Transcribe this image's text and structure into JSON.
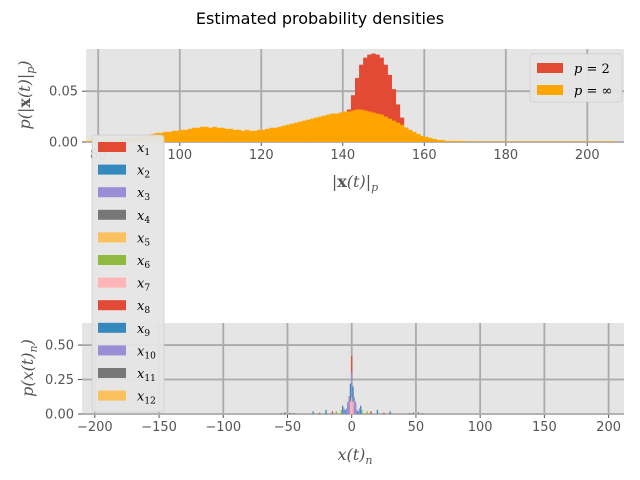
{
  "figure": {
    "title": "Estimated probability densities"
  },
  "chart_data": [
    {
      "type": "bar",
      "style": "histogram",
      "xlabel": "|x(t)|_p",
      "xlabel_parts": {
        "open": "|",
        "bold": "x",
        "mid": "(t)|",
        "sub": "p"
      },
      "ylabel": "p(|x(t)|_p)",
      "ylabel_parts": {
        "main": "p(|",
        "bold": "x",
        "mid": "(t)|",
        "sub": "p",
        "close": ")"
      },
      "xlim": [
        77,
        209
      ],
      "ylim": [
        0,
        0.0915
      ],
      "xticks": [
        {
          "value": 80,
          "label": "80"
        },
        {
          "value": 100,
          "label": "100"
        },
        {
          "value": 120,
          "label": "120"
        },
        {
          "value": 140,
          "label": "140"
        },
        {
          "value": 160,
          "label": "160"
        },
        {
          "value": 180,
          "label": "180"
        },
        {
          "value": 200,
          "label": "200"
        }
      ],
      "yticks": [
        {
          "value": 0,
          "label": "0.00"
        },
        {
          "value": 0.05,
          "label": "0.05"
        }
      ],
      "grid": true,
      "legend_placement": "upper right",
      "bin_width": 1.0,
      "series": [
        {
          "name": "p = 2",
          "label_main": "p",
          "label_eq": " = 2",
          "color": "#e24a33",
          "x_start": 134,
          "x_end": 171,
          "densities": [
            0.001,
            0.002,
            0.004,
            0.007,
            0.01,
            0.015,
            0.022,
            0.032,
            0.046,
            0.063,
            0.076,
            0.083,
            0.086,
            0.087,
            0.086,
            0.083,
            0.076,
            0.066,
            0.052,
            0.037,
            0.024,
            0.014,
            0.008,
            0.005,
            0.004,
            0.003,
            0.002,
            0.002,
            0.001,
            0.001,
            0.001,
            0.001,
            0.001,
            0.0005,
            0.0005,
            0.0005,
            0.0005
          ]
        },
        {
          "name": "p = ∞",
          "label_main": "p",
          "label_eq": " = ∞",
          "color": "#ffa500",
          "x_start": 77,
          "x_end": 207,
          "densities": [
            0.001,
            0.001,
            0.001,
            0.001,
            0.002,
            0.002,
            0.002,
            0.003,
            0.003,
            0.004,
            0.004,
            0.005,
            0.005,
            0.006,
            0.006,
            0.007,
            0.008,
            0.009,
            0.009,
            0.01,
            0.01,
            0.011,
            0.011,
            0.012,
            0.012,
            0.013,
            0.014,
            0.014,
            0.015,
            0.015,
            0.014,
            0.015,
            0.014,
            0.014,
            0.013,
            0.013,
            0.012,
            0.012,
            0.011,
            0.012,
            0.011,
            0.011,
            0.012,
            0.012,
            0.013,
            0.014,
            0.014,
            0.015,
            0.016,
            0.017,
            0.018,
            0.019,
            0.02,
            0.021,
            0.022,
            0.023,
            0.024,
            0.025,
            0.026,
            0.027,
            0.028,
            0.028,
            0.029,
            0.03,
            0.03,
            0.031,
            0.032,
            0.032,
            0.031,
            0.03,
            0.029,
            0.028,
            0.027,
            0.025,
            0.023,
            0.021,
            0.019,
            0.017,
            0.014,
            0.012,
            0.01,
            0.008,
            0.006,
            0.005,
            0.004,
            0.003,
            0.002,
            0.002,
            0.001,
            0.001,
            0.001,
            0.001,
            0.001,
            0.0005,
            0.0005,
            0.0005,
            0.0005,
            0.0005,
            0.0005,
            0.0005,
            0.0005,
            0.0005,
            0.0005,
            0.0005,
            0.0005,
            0.0005,
            0.0005,
            0.0005,
            0.0005,
            0.0005,
            0.0005,
            0.0005,
            0.0005,
            0.0005,
            0.0005,
            0.0005,
            0.0005,
            0.0005,
            0.0005,
            0.0005,
            0.0005,
            0.0005,
            0.0005,
            0.0005,
            0.0005,
            0.0005,
            0.0005,
            0.0005,
            0.0005,
            0.0005
          ]
        }
      ]
    },
    {
      "type": "bar",
      "style": "histogram",
      "xlabel": "x(t)_n",
      "xlabel_parts": {
        "main": "x(t)",
        "sub": "n"
      },
      "ylabel": "p(x(t)_n)",
      "ylabel_parts": {
        "main": "p(x(t)",
        "sub": "n",
        "close": ")"
      },
      "xlim": [
        -210,
        212
      ],
      "ylim": [
        0,
        0.66
      ],
      "xticks": [
        {
          "value": -200,
          "label": "−200"
        },
        {
          "value": -150,
          "label": "−150"
        },
        {
          "value": -100,
          "label": "−100"
        },
        {
          "value": -50,
          "label": "−50"
        },
        {
          "value": 0,
          "label": "0"
        },
        {
          "value": 50,
          "label": "50"
        },
        {
          "value": 100,
          "label": "100"
        },
        {
          "value": 150,
          "label": "150"
        },
        {
          "value": 200,
          "label": "200"
        }
      ],
      "yticks": [
        {
          "value": 0,
          "label": "0.00"
        },
        {
          "value": 0.25,
          "label": "0.25"
        },
        {
          "value": 0.5,
          "label": "0.50"
        }
      ],
      "grid": true,
      "legend_placement": "left, outside plot",
      "series": [
        {
          "name": "x1",
          "label_main": "x",
          "label_sub": "1",
          "color": "#e24a33",
          "bars": [
            [
              -2,
              0.05
            ],
            [
              -1,
              0.12
            ],
            [
              0,
              0.42
            ],
            [
              1,
              0.15
            ],
            [
              2,
              0.05
            ]
          ]
        },
        {
          "name": "x2",
          "label_main": "x",
          "label_sub": "2",
          "color": "#348abd",
          "bars": [
            [
              -5,
              0.03
            ],
            [
              -3,
              0.08
            ],
            [
              -1,
              0.22
            ],
            [
              1,
              0.2
            ],
            [
              3,
              0.07
            ],
            [
              5,
              0.02
            ]
          ]
        },
        {
          "name": "x3",
          "label_main": "x",
          "label_sub": "3",
          "color": "#988ed5",
          "bars": [
            [
              -4,
              0.04
            ],
            [
              -2,
              0.13
            ],
            [
              0,
              0.3
            ],
            [
              2,
              0.12
            ],
            [
              4,
              0.03
            ]
          ]
        },
        {
          "name": "x4",
          "label_main": "x",
          "label_sub": "4",
          "color": "#777777",
          "bars": [
            [
              -52,
              0.012
            ],
            [
              -48,
              0.008
            ],
            [
              48,
              0.01
            ],
            [
              52,
              0.012
            ]
          ]
        },
        {
          "name": "x5",
          "label_main": "x",
          "label_sub": "5",
          "color": "#fbc15e",
          "bars": [
            [
              -190,
              0.003
            ],
            [
              -150,
              0.003
            ],
            [
              -110,
              0.003
            ],
            [
              -70,
              0.003
            ],
            [
              -30,
              0.004
            ],
            [
              30,
              0.004
            ],
            [
              70,
              0.003
            ],
            [
              110,
              0.003
            ],
            [
              150,
              0.003
            ],
            [
              190,
              0.003
            ]
          ]
        },
        {
          "name": "x6",
          "label_main": "x",
          "label_sub": "6",
          "color": "#8eba42",
          "bars": [
            [
              -12,
              0.02
            ],
            [
              -8,
              0.03
            ],
            [
              8,
              0.03
            ],
            [
              12,
              0.02
            ]
          ]
        },
        {
          "name": "x7",
          "label_main": "x",
          "label_sub": "7",
          "color": "#ffb5b8",
          "bars": [
            [
              -1,
              0.09
            ],
            [
              0,
              0.12
            ],
            [
              1,
              0.09
            ]
          ]
        },
        {
          "name": "x8",
          "label_main": "x",
          "label_sub": "8",
          "color": "#e24a33",
          "bars": [
            [
              -25,
              0.01
            ],
            [
              -15,
              0.02
            ],
            [
              15,
              0.02
            ],
            [
              25,
              0.01
            ]
          ]
        },
        {
          "name": "x9",
          "label_main": "x",
          "label_sub": "9",
          "color": "#348abd",
          "bars": [
            [
              -30,
              0.02
            ],
            [
              -20,
              0.03
            ],
            [
              -7,
              0.06
            ],
            [
              7,
              0.06
            ],
            [
              20,
              0.03
            ],
            [
              30,
              0.02
            ]
          ]
        },
        {
          "name": "x10",
          "label_main": "x",
          "label_sub": "10",
          "color": "#988ed5",
          "bars": [
            [
              -6,
              0.04
            ],
            [
              -3,
              0.09
            ],
            [
              3,
              0.09
            ],
            [
              6,
              0.04
            ]
          ]
        },
        {
          "name": "x11",
          "label_main": "x",
          "label_sub": "11",
          "color": "#777777",
          "bars": [
            [
              -55,
              0.006
            ],
            [
              -45,
              0.008
            ],
            [
              45,
              0.008
            ],
            [
              55,
              0.006
            ]
          ]
        },
        {
          "name": "x12",
          "label_main": "x",
          "label_sub": "12",
          "color": "#fbc15e",
          "bars": [
            [
              -100,
              0.003
            ],
            [
              -60,
              0.004
            ],
            [
              -35,
              0.004
            ],
            [
              35,
              0.004
            ],
            [
              60,
              0.004
            ],
            [
              100,
              0.003
            ]
          ]
        }
      ]
    }
  ]
}
